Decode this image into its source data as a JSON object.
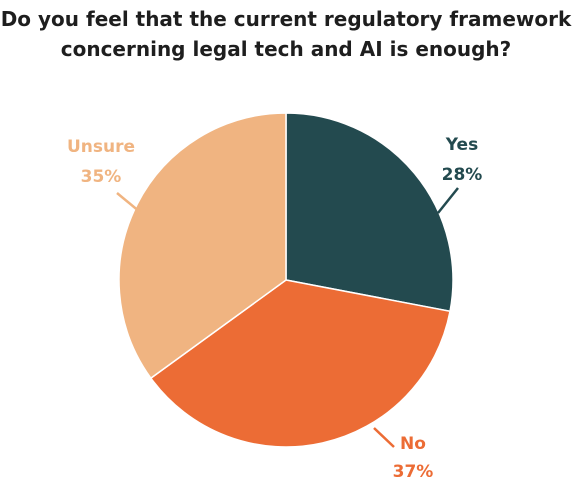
{
  "chart_data": {
    "type": "pie",
    "title_lines": [
      "Do you feel that the current regulatory framework",
      "concerning legal tech and AI is enough?"
    ],
    "slices": [
      {
        "label": "Yes",
        "value": 28,
        "value_label": "28%",
        "color": "#234a4f"
      },
      {
        "label": "No",
        "value": 37,
        "value_label": "37%",
        "color": "#ec6c35"
      },
      {
        "label": "Unsure",
        "value": 35,
        "value_label": "35%",
        "color": "#f0b481"
      }
    ]
  }
}
